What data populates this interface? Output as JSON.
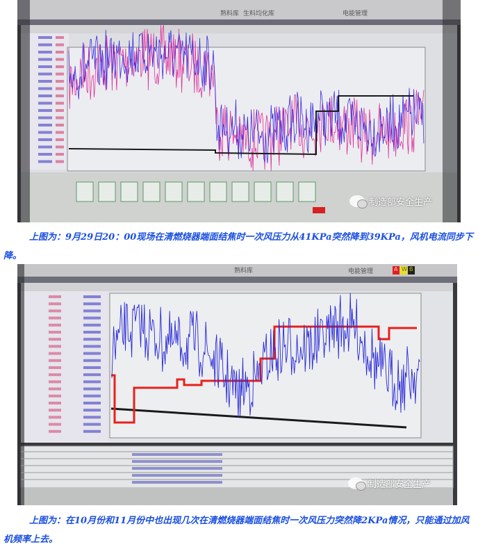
{
  "photo1": {
    "top_buttons": [
      "生料均化库",
      "熟料库",
      "电能管理"
    ],
    "watermark": "制造部安全生产",
    "colors": {
      "series_a": "#3a2be0",
      "series_b": "#e0309a",
      "series_c": "#1a1a1a"
    }
  },
  "caption1": "上图为：9月29日20：00现场在清燃烧器端面结焦时一次风压力从41KPa突然降到39KPa，风机电流同步下降。",
  "photo2": {
    "top_buttons": [
      "熟料库",
      "电能管理"
    ],
    "alarm_badges": [
      "A",
      "W",
      "B"
    ],
    "watermark": "制造部安全生产",
    "colors": {
      "series_a": "#2a2ad8",
      "series_b": "#e8201c",
      "series_c": "#1a1a1a"
    }
  },
  "caption2": "上图为：在10月份和11月份中也出现几次在清燃烧器端面结焦时一次风压力突然降2KPa情况，只能通过加风机频率上去。"
}
